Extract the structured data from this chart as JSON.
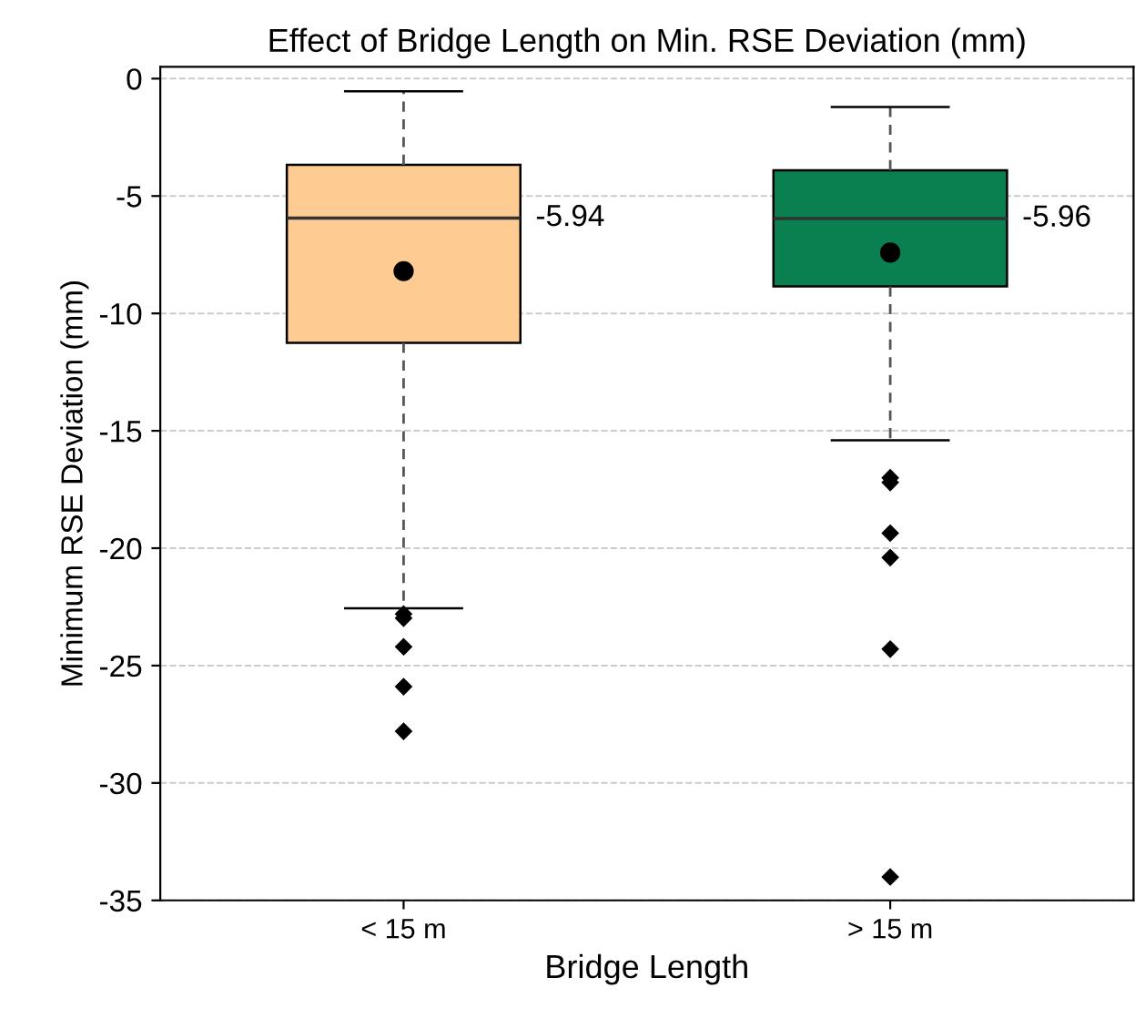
{
  "chart_data": {
    "type": "box",
    "title": "Effect of Bridge Length on Min. RSE Deviation (mm)",
    "xlabel": "Bridge Length",
    "ylabel": "Minimum RSE Deviation (mm)",
    "categories": [
      "< 15 m",
      "> 15 m"
    ],
    "colors": [
      "#fecb92",
      "#0a7f50"
    ],
    "boxes": [
      {
        "low": -22.56,
        "q1": -11.25,
        "median": -5.94,
        "q3": -3.67,
        "high": -0.54,
        "mean": -8.2,
        "outliers": [
          -22.8,
          -22.98,
          -24.2,
          -25.9,
          -27.8
        ]
      },
      {
        "low": -15.4,
        "q1": -8.85,
        "median": -5.96,
        "q3": -3.9,
        "high": -1.21,
        "mean": -7.41,
        "outliers": [
          -17.0,
          -17.2,
          -19.36,
          -20.4,
          -24.3,
          -34.0
        ]
      }
    ],
    "annotations": [
      "-5.94",
      "-5.96"
    ],
    "ylim": [
      -35,
      0.5
    ],
    "yticks": [
      {
        "value": -35,
        "label": "-35"
      },
      {
        "value": -30,
        "label": "-30"
      },
      {
        "value": -25,
        "label": "-25"
      },
      {
        "value": -20,
        "label": "-20"
      },
      {
        "value": -15,
        "label": "-15"
      },
      {
        "value": -10,
        "label": "-10"
      },
      {
        "value": -5,
        "label": "-5"
      },
      0
    ],
    "grid": "y",
    "marker": "diamond"
  }
}
